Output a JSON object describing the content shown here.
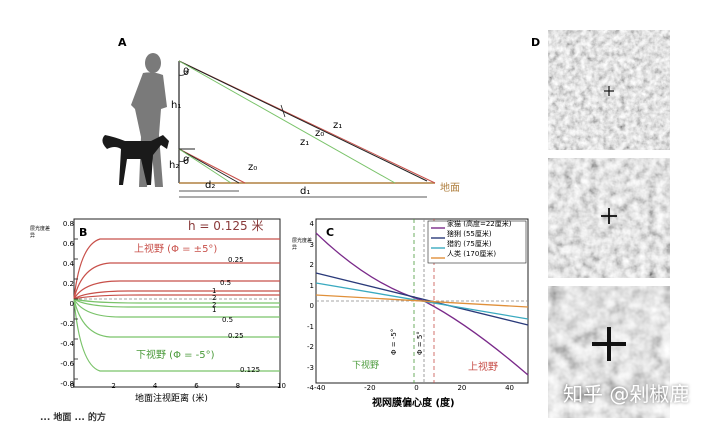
{
  "panel_a": {
    "label": "A",
    "theta": "θ",
    "h1": "h₁",
    "h2": "h₂",
    "z0": "z₀",
    "z1": "z₁",
    "z0p": "z₀",
    "z1p": "z₁",
    "z0_small": "z₀",
    "d1": "d₁",
    "d2": "d₂",
    "ground": "地面",
    "colors": {
      "red": "#c8504a",
      "green": "#7ac36a",
      "black": "#222222",
      "ground": "#b08040"
    }
  },
  "panel_b": {
    "label": "B",
    "ylabel": "层光度差异",
    "xlabel": "地面注视距离 (米)",
    "h_label": "h = 0.125 米",
    "upper_label": "上视野 (Φ = ±5°)",
    "lower_label": "下视野 (Φ = -5°)",
    "yticks": [
      "0.8",
      "0.6",
      "0.4",
      "0.2",
      "0",
      "-0.2",
      "-0.4",
      "-0.6",
      "-0.8"
    ],
    "xticks": [
      "0",
      "2",
      "4",
      "6",
      "8",
      "10"
    ],
    "curve_labels_upper": [
      "0.25",
      "0.5",
      "1",
      "2"
    ],
    "curve_labels_lower": [
      "2",
      "1",
      "0.5",
      "0.25",
      "0.125"
    ]
  },
  "panel_c": {
    "label": "C",
    "ylabel": "层光度差异",
    "xlabel": "视网膜偏心度 (度)",
    "yticks": [
      "4",
      "3",
      "2",
      "1",
      "0",
      "-1",
      "-2",
      "-3",
      "-4"
    ],
    "xticks": [
      "-40",
      "-20",
      "0",
      "20",
      "40"
    ],
    "lower_field": "下视野",
    "upper_field": "上视野",
    "phi_neg": "Φ = -5°",
    "phi_pos": "Φ = 5°",
    "legend": [
      {
        "name": "家猫 (高度=22厘米)",
        "color": "#7a2a8a"
      },
      {
        "name": "猞猁 (55厘米)",
        "color": "#2a3a7a"
      },
      {
        "name": "猎豹 (75厘米)",
        "color": "#3aaac0"
      },
      {
        "name": "人类 (170厘米)",
        "color": "#e0903a"
      }
    ]
  },
  "panel_d": {
    "label": "D"
  },
  "watermark": "知乎 @剁椒鹿",
  "bottom_text": "... 地面 ... 的方"
}
